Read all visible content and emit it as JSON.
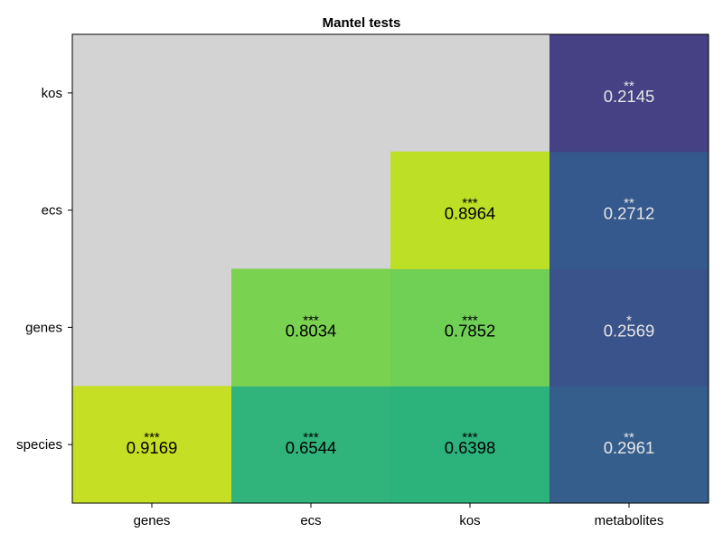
{
  "chart_data": {
    "type": "heatmap",
    "title": "Mantel tests",
    "x_categories": [
      "genes",
      "ecs",
      "kos",
      "metabolites"
    ],
    "y_categories": [
      "species",
      "genes",
      "ecs",
      "kos"
    ],
    "missing_color": "#d3d3d3",
    "colormap": "viridis",
    "cells": [
      {
        "x": "genes",
        "y": "species",
        "value": 0.9169,
        "stars": "***",
        "color": "#c5df24"
      },
      {
        "x": "ecs",
        "y": "species",
        "value": 0.6544,
        "stars": "***",
        "color": "#30b47b"
      },
      {
        "x": "kos",
        "y": "species",
        "value": 0.6398,
        "stars": "***",
        "color": "#2cb37c"
      },
      {
        "x": "metabolites",
        "y": "species",
        "value": 0.2961,
        "stars": "**",
        "color": "#355e8d"
      },
      {
        "x": "ecs",
        "y": "genes",
        "value": 0.8034,
        "stars": "***",
        "color": "#7ad251"
      },
      {
        "x": "kos",
        "y": "genes",
        "value": 0.7852,
        "stars": "***",
        "color": "#70d056"
      },
      {
        "x": "metabolites",
        "y": "genes",
        "value": 0.2569,
        "stars": "*",
        "color": "#3a538b"
      },
      {
        "x": "kos",
        "y": "ecs",
        "value": 0.8964,
        "stars": "***",
        "color": "#bddf26"
      },
      {
        "x": "metabolites",
        "y": "ecs",
        "value": 0.2712,
        "stars": "**",
        "color": "#35598d"
      },
      {
        "x": "metabolites",
        "y": "kos",
        "value": 0.2145,
        "stars": "**",
        "color": "#454184"
      }
    ],
    "text_color_dark": "#000000",
    "text_color_light": "#e6e6e6",
    "light_text_threshold": 0.5
  }
}
